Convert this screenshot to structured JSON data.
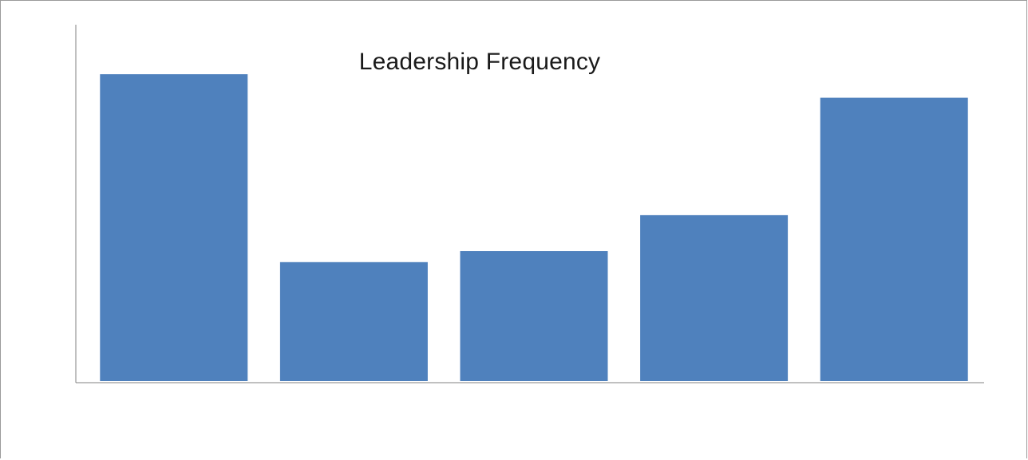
{
  "chart_data": {
    "type": "bar",
    "title": "Leadership Frequency",
    "xlabel": "",
    "ylabel": "",
    "categories": [
      "",
      "",
      "",
      "",
      ""
    ],
    "values": [
      98,
      38,
      41.5,
      53,
      90.5
    ],
    "ylim": [
      0,
      110
    ],
    "grid": false,
    "legend": "none",
    "bar_color": "#4f81bd",
    "axis_color": "#808080"
  }
}
